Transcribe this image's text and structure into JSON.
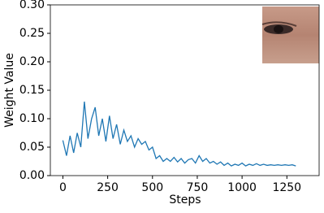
{
  "chart_data": {
    "type": "line",
    "xlabel": "Steps",
    "ylabel": "Weight Value",
    "x": [
      0,
      20,
      40,
      60,
      80,
      100,
      120,
      140,
      160,
      180,
      200,
      220,
      240,
      260,
      280,
      300,
      320,
      340,
      360,
      380,
      400,
      420,
      440,
      460,
      480,
      500,
      520,
      540,
      560,
      580,
      600,
      620,
      640,
      660,
      680,
      700,
      720,
      740,
      760,
      780,
      800,
      820,
      840,
      860,
      880,
      900,
      920,
      940,
      960,
      980,
      1000,
      1020,
      1040,
      1060,
      1080,
      1100,
      1120,
      1140,
      1160,
      1180,
      1200,
      1220,
      1240,
      1260,
      1280,
      1300
    ],
    "series": [
      {
        "color": "#1f77b4",
        "values": [
          0.062,
          0.035,
          0.07,
          0.04,
          0.075,
          0.05,
          0.13,
          0.065,
          0.1,
          0.12,
          0.07,
          0.1,
          0.06,
          0.105,
          0.065,
          0.09,
          0.055,
          0.08,
          0.06,
          0.07,
          0.05,
          0.065,
          0.055,
          0.06,
          0.045,
          0.05,
          0.03,
          0.035,
          0.025,
          0.03,
          0.025,
          0.032,
          0.024,
          0.03,
          0.022,
          0.028,
          0.03,
          0.022,
          0.035,
          0.025,
          0.03,
          0.022,
          0.025,
          0.02,
          0.024,
          0.018,
          0.022,
          0.017,
          0.02,
          0.018,
          0.022,
          0.017,
          0.02,
          0.018,
          0.021,
          0.018,
          0.02,
          0.018,
          0.019,
          0.018,
          0.019,
          0.018,
          0.019,
          0.018,
          0.019,
          0.017
        ]
      }
    ],
    "xlim": [
      -70,
      1430
    ],
    "xticks": [
      0,
      250,
      500,
      750,
      1000,
      1250
    ],
    "ylim": [
      0,
      0.3
    ],
    "yticks": [
      {
        "value": 0,
        "label": "0.00"
      },
      {
        "value": 0.05,
        "label": "0.05"
      },
      {
        "value": 0.1,
        "label": "0.10"
      },
      {
        "value": 0.15,
        "label": "0.15"
      },
      {
        "value": 0.2,
        "label": "0.20"
      },
      {
        "value": 0.25,
        "label": "0.25"
      },
      {
        "value": 0.3,
        "label": "0.30"
      }
    ]
  }
}
